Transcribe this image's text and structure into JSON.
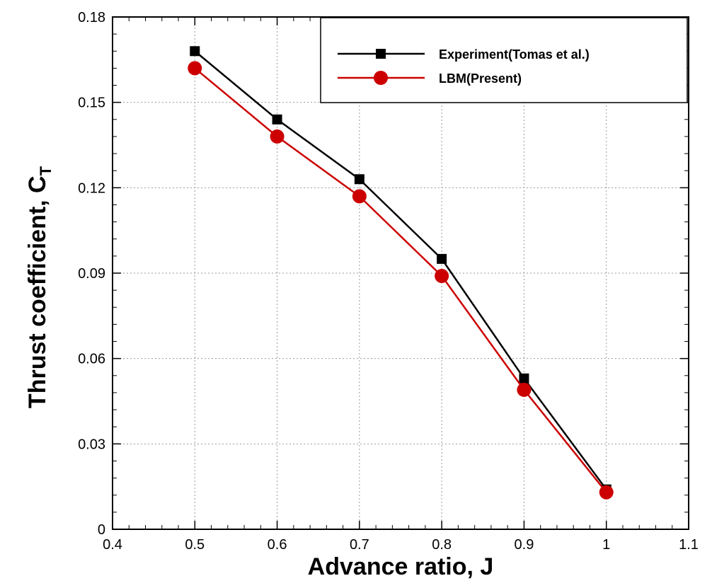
{
  "chart_data": {
    "type": "line",
    "title": "",
    "xlabel": "Advance ratio, J",
    "ylabel_main": "Thrust coefficient, C",
    "ylabel_sub": "T",
    "xlim": [
      0.4,
      1.1
    ],
    "ylim": [
      0,
      0.18
    ],
    "xticks": [
      0.4,
      0.5,
      0.6,
      0.7,
      0.8,
      0.9,
      1.0,
      1.1
    ],
    "xtick_labels": [
      "0.4",
      "0.5",
      "0.6",
      "0.7",
      "0.8",
      "0.9",
      "1",
      "1.1"
    ],
    "yticks": [
      0,
      0.03,
      0.06,
      0.09,
      0.12,
      0.15,
      0.18
    ],
    "ytick_labels": [
      "0",
      "0.03",
      "0.06",
      "0.09",
      "0.12",
      "0.15",
      "0.18"
    ],
    "grid": true,
    "legend_position": "top-right",
    "x": [
      0.5,
      0.6,
      0.7,
      0.8,
      0.9,
      1.0
    ],
    "series": [
      {
        "name": "Experiment(Tomas et al.)",
        "color": "#000000",
        "marker": "square",
        "values": [
          0.168,
          0.144,
          0.123,
          0.095,
          0.053,
          0.014
        ]
      },
      {
        "name": "LBM(Present)",
        "color": "#cc0000",
        "marker": "circle",
        "values": [
          0.162,
          0.138,
          0.117,
          0.089,
          0.049,
          0.013
        ]
      }
    ]
  }
}
